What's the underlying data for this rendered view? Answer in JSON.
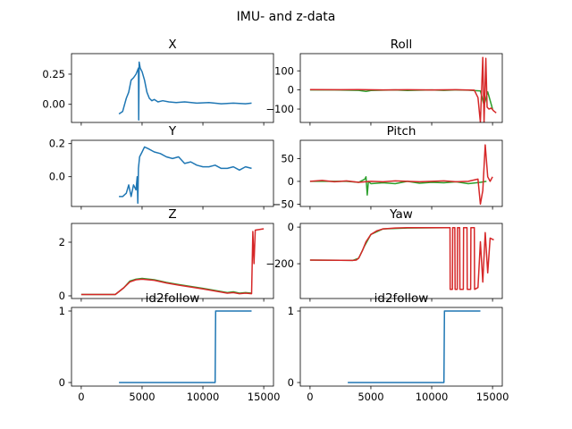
{
  "figure": {
    "title": "IMU- and z-data"
  },
  "chart_data": [
    {
      "type": "line",
      "title": "X",
      "xlim": [
        -800,
        15800
      ],
      "ylim": [
        -0.15,
        0.42
      ],
      "yticks": [
        0.0,
        0.25
      ],
      "ytick_labels": [
        "0.00",
        "0.25"
      ],
      "xticks": [
        0,
        5000,
        10000,
        15000
      ],
      "xtick_labels": [],
      "grid": false,
      "series": [
        {
          "color": "#1f77b4",
          "x": [
            3100,
            3400,
            3700,
            3900,
            4100,
            4300,
            4500,
            4700,
            4720,
            4760,
            4800,
            4850,
            5000,
            5200,
            5400,
            5600,
            5800,
            6000,
            6300,
            6700,
            7200,
            7800,
            8500,
            9500,
            10500,
            11500,
            12500,
            13500,
            14000
          ],
          "y": [
            -0.08,
            -0.06,
            0.05,
            0.1,
            0.2,
            0.22,
            0.25,
            0.3,
            -0.13,
            0.35,
            0.33,
            0.3,
            0.27,
            0.2,
            0.1,
            0.05,
            0.03,
            0.04,
            0.02,
            0.03,
            0.02,
            0.015,
            0.02,
            0.01,
            0.015,
            0.005,
            0.01,
            0.005,
            0.01
          ]
        }
      ]
    },
    {
      "type": "line",
      "title": "Roll",
      "xlim": [
        -800,
        15800
      ],
      "ylim": [
        -170,
        190
      ],
      "yticks": [
        -100,
        0,
        100
      ],
      "ytick_labels": [
        "−100",
        "0",
        "100"
      ],
      "xticks": [
        0,
        5000,
        10000,
        15000
      ],
      "xtick_labels": [],
      "grid": false,
      "series": [
        {
          "color": "#2ca02c",
          "x": [
            0,
            2000,
            4000,
            4600,
            5000,
            6000,
            7000,
            8000,
            9000,
            10000,
            11000,
            12000,
            13000,
            14000,
            14300,
            14600,
            15000
          ],
          "y": [
            0,
            0,
            -2,
            -8,
            -3,
            -1,
            0,
            -3,
            -1,
            0,
            -2,
            0,
            -1,
            -5,
            -80,
            -10,
            -100
          ]
        },
        {
          "color": "#d62728",
          "x": [
            0,
            2000,
            4000,
            6000,
            8000,
            10000,
            12000,
            13500,
            13800,
            14000,
            14200,
            14300,
            14450,
            14550,
            14700,
            14900,
            15100,
            15300
          ],
          "y": [
            2,
            1,
            2,
            0,
            1,
            0,
            1,
            -1,
            -40,
            -170,
            170,
            -170,
            165,
            -90,
            -100,
            -95,
            -110,
            -120
          ]
        }
      ]
    },
    {
      "type": "line",
      "title": "Y",
      "xlim": [
        -800,
        15800
      ],
      "ylim": [
        -0.18,
        0.22
      ],
      "yticks": [
        0.0,
        0.2
      ],
      "ytick_labels": [
        "0.0",
        "0.2"
      ],
      "xticks": [
        0,
        5000,
        10000,
        15000
      ],
      "xtick_labels": [],
      "grid": false,
      "series": [
        {
          "color": "#1f77b4",
          "x": [
            3100,
            3400,
            3700,
            3900,
            4100,
            4300,
            4500,
            4600,
            4650,
            4700,
            4800,
            5000,
            5200,
            5500,
            6000,
            6500,
            7000,
            7500,
            8000,
            8500,
            9000,
            9500,
            10000,
            10500,
            11000,
            11500,
            12000,
            12500,
            13000,
            13500,
            14000
          ],
          "y": [
            -0.12,
            -0.12,
            -0.1,
            -0.05,
            -0.12,
            -0.05,
            -0.08,
            0.0,
            -0.16,
            0.05,
            0.12,
            0.15,
            0.18,
            0.17,
            0.15,
            0.14,
            0.12,
            0.11,
            0.12,
            0.08,
            0.09,
            0.07,
            0.06,
            0.06,
            0.07,
            0.05,
            0.05,
            0.06,
            0.04,
            0.06,
            0.05
          ]
        }
      ]
    },
    {
      "type": "line",
      "title": "Pitch",
      "xlim": [
        -800,
        15800
      ],
      "ylim": [
        -55,
        90
      ],
      "yticks": [
        -50,
        0,
        50
      ],
      "ytick_labels": [
        "−50",
        "0",
        "50"
      ],
      "xticks": [
        0,
        5000,
        10000,
        15000
      ],
      "xtick_labels": [],
      "grid": false,
      "series": [
        {
          "color": "#2ca02c",
          "x": [
            0,
            3000,
            4000,
            4500,
            4600,
            4700,
            4800,
            5000,
            6000,
            7000,
            8000,
            9000,
            10000,
            11000,
            12000,
            13000,
            14000,
            14500
          ],
          "y": [
            0,
            0,
            -2,
            5,
            10,
            -30,
            0,
            -5,
            -3,
            -5,
            0,
            -4,
            -2,
            -3,
            -1,
            -5,
            -2,
            0
          ]
        },
        {
          "color": "#d62728",
          "x": [
            0,
            1000,
            2000,
            3000,
            4000,
            5000,
            6000,
            7000,
            8000,
            9000,
            10000,
            11000,
            12000,
            13000,
            13800,
            14000,
            14200,
            14400,
            14600,
            14800,
            15000
          ],
          "y": [
            0,
            2,
            -1,
            1,
            -2,
            0,
            -1,
            1,
            0,
            -1,
            0,
            1,
            -1,
            0,
            5,
            -50,
            -20,
            80,
            10,
            0,
            10
          ]
        }
      ]
    },
    {
      "type": "line",
      "title": "Z",
      "xlim": [
        -800,
        15800
      ],
      "ylim": [
        -0.1,
        2.7
      ],
      "yticks": [
        0,
        2
      ],
      "ytick_labels": [
        "0",
        "2"
      ],
      "xticks": [
        0,
        5000,
        10000,
        15000
      ],
      "xtick_labels": [],
      "grid": false,
      "series": [
        {
          "color": "#2ca02c",
          "x": [
            0,
            2800,
            3500,
            4000,
            4500,
            5000,
            6000,
            7000,
            8000,
            9000,
            10000,
            11000,
            12000,
            12500,
            13000,
            13500,
            14000
          ],
          "y": [
            0.05,
            0.05,
            0.3,
            0.55,
            0.62,
            0.65,
            0.6,
            0.5,
            0.42,
            0.35,
            0.28,
            0.2,
            0.12,
            0.15,
            0.1,
            0.12,
            0.1
          ]
        },
        {
          "color": "#d62728",
          "x": [
            0,
            2800,
            3500,
            4000,
            4500,
            5000,
            6000,
            7000,
            8000,
            9000,
            10000,
            11000,
            12000,
            12500,
            13000,
            13500,
            14000,
            14100,
            14200,
            14300,
            15000
          ],
          "y": [
            0.05,
            0.05,
            0.3,
            0.52,
            0.6,
            0.62,
            0.58,
            0.48,
            0.4,
            0.33,
            0.26,
            0.18,
            0.1,
            0.12,
            0.08,
            0.1,
            0.08,
            2.4,
            1.2,
            2.45,
            2.5
          ]
        }
      ]
    },
    {
      "type": "line",
      "title": "Yaw",
      "xlim": [
        -800,
        15800
      ],
      "ylim": [
        -390,
        20
      ],
      "yticks": [
        -200,
        0
      ],
      "ytick_labels": [
        "−200",
        "0"
      ],
      "xticks": [
        0,
        5000,
        10000,
        15000
      ],
      "xtick_labels": [],
      "grid": false,
      "series": [
        {
          "color": "#2ca02c",
          "x": [
            0,
            3500,
            4000,
            4500,
            5000,
            6000,
            8000,
            11500
          ],
          "y": [
            -180,
            -182,
            -170,
            -100,
            -40,
            -10,
            -5,
            -3
          ]
        },
        {
          "color": "#d62728",
          "x": [
            0,
            3500,
            3800,
            4000,
            4300,
            4600,
            5000,
            5500,
            6000,
            7000,
            8000,
            9000,
            10000,
            11000,
            11500,
            11520,
            11700,
            11720,
            11900,
            11920,
            12100,
            12120,
            12300,
            12320,
            12600,
            12620,
            12900,
            12920,
            13200,
            13220,
            13500,
            13520,
            13800,
            14000,
            14200,
            14400,
            14600,
            14800,
            15100
          ],
          "y": [
            -180,
            -182,
            -180,
            -170,
            -130,
            -80,
            -40,
            -20,
            -10,
            -5,
            -3,
            -3,
            -3,
            -3,
            -3,
            -340,
            -340,
            -3,
            -3,
            -340,
            -340,
            -3,
            -3,
            -340,
            -340,
            -3,
            -3,
            -340,
            -340,
            -3,
            -3,
            -340,
            -330,
            -80,
            -300,
            -30,
            -250,
            -60,
            -70
          ]
        }
      ]
    },
    {
      "type": "line",
      "title": "id2follow",
      "xlim": [
        -800,
        15800
      ],
      "ylim": [
        -0.05,
        1.05
      ],
      "yticks": [
        0,
        1
      ],
      "ytick_labels": [
        "0",
        "1"
      ],
      "xticks": [
        0,
        5000,
        10000,
        15000
      ],
      "xtick_labels": [
        "0",
        "5000",
        "10000",
        "15000"
      ],
      "grid": false,
      "series": [
        {
          "color": "#1f77b4",
          "x": [
            3100,
            11000,
            11050,
            14000
          ],
          "y": [
            0,
            0,
            1,
            1
          ]
        }
      ]
    },
    {
      "type": "line",
      "title": "id2follow",
      "xlim": [
        -800,
        15800
      ],
      "ylim": [
        -0.05,
        1.05
      ],
      "yticks": [
        0,
        1
      ],
      "ytick_labels": [
        "0",
        "1"
      ],
      "xticks": [
        0,
        5000,
        10000,
        15000
      ],
      "xtick_labels": [
        "0",
        "5000",
        "10000",
        "15000"
      ],
      "grid": false,
      "series": [
        {
          "color": "#1f77b4",
          "x": [
            3100,
            11000,
            11050,
            14000
          ],
          "y": [
            0,
            0,
            1,
            1
          ]
        }
      ]
    }
  ]
}
